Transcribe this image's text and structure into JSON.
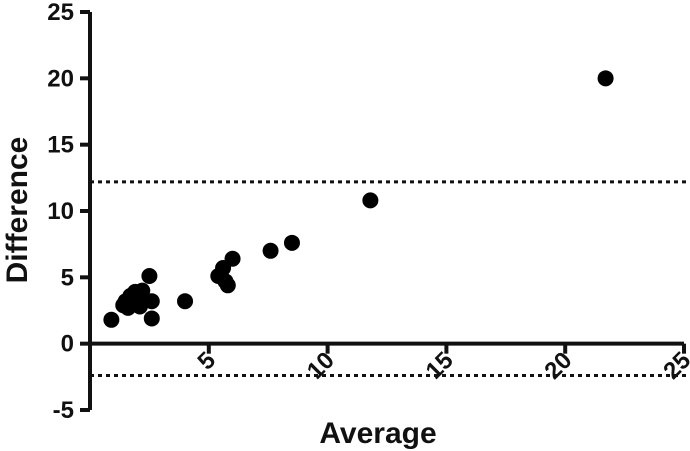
{
  "chart_data": {
    "type": "scatter",
    "title": "",
    "xlabel": "Average",
    "ylabel": "Difference",
    "xlim": [
      0,
      25
    ],
    "ylim": [
      -5,
      25
    ],
    "x_ticks": [
      "5",
      "10",
      "15",
      "20",
      "25"
    ],
    "y_ticks": [
      "-5",
      "0",
      "5",
      "10",
      "15",
      "20",
      "25"
    ],
    "grid": false,
    "reference_lines": [
      {
        "y": 12.2,
        "style": "dotted"
      },
      {
        "y": -2.4,
        "style": "dotted"
      }
    ],
    "series": [
      {
        "points": [
          {
            "x": 0.9,
            "y": 1.8
          },
          {
            "x": 1.4,
            "y": 2.9
          },
          {
            "x": 1.5,
            "y": 3.2
          },
          {
            "x": 1.6,
            "y": 2.7
          },
          {
            "x": 1.7,
            "y": 3.6
          },
          {
            "x": 1.9,
            "y": 3.9
          },
          {
            "x": 2.0,
            "y": 3.3
          },
          {
            "x": 2.1,
            "y": 2.8
          },
          {
            "x": 2.2,
            "y": 4.0
          },
          {
            "x": 2.5,
            "y": 5.1
          },
          {
            "x": 2.6,
            "y": 3.2
          },
          {
            "x": 2.6,
            "y": 1.9
          },
          {
            "x": 4.0,
            "y": 3.2
          },
          {
            "x": 5.4,
            "y": 5.1
          },
          {
            "x": 5.6,
            "y": 5.7
          },
          {
            "x": 5.7,
            "y": 4.7
          },
          {
            "x": 5.8,
            "y": 4.4
          },
          {
            "x": 6.0,
            "y": 6.4
          },
          {
            "x": 7.6,
            "y": 7.0
          },
          {
            "x": 8.5,
            "y": 7.6
          },
          {
            "x": 11.8,
            "y": 10.8
          },
          {
            "x": 21.7,
            "y": 20.0
          }
        ]
      }
    ]
  }
}
